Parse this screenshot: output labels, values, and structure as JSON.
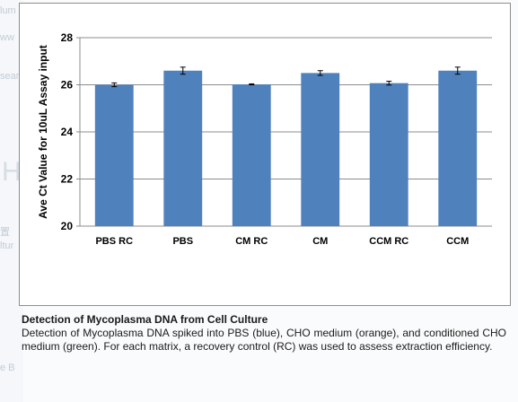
{
  "background_fragments": [
    "lum",
    "ww",
    "sear",
    "H",
    "置",
    "ltur",
    "e B"
  ],
  "chart_data": {
    "type": "bar",
    "categories": [
      "PBS RC",
      "PBS",
      "CM RC",
      "CM",
      "CCM RC",
      "CCM"
    ],
    "series": [
      {
        "values": [
          26.0,
          26.6,
          26.02,
          26.5,
          26.07,
          26.6
        ],
        "errors": [
          0.08,
          0.15,
          0.02,
          0.1,
          0.08,
          0.15
        ],
        "color": "#4f81bd"
      }
    ],
    "title": "",
    "xlabel": "",
    "ylabel": "Ave Ct Value for 10uL Assay input",
    "ylim": [
      20,
      28
    ],
    "yticks": [
      20,
      22,
      24,
      26,
      28
    ],
    "grid": true,
    "legend": "none"
  },
  "caption": {
    "title": "Detection of Mycoplasma DNA from Cell Culture",
    "body": "Detection of Mycoplasma DNA spiked into PBS (blue), CHO medium (orange), and conditioned CHO medium (green). For each matrix, a recovery control (RC) was used to assess extraction efficiency."
  }
}
